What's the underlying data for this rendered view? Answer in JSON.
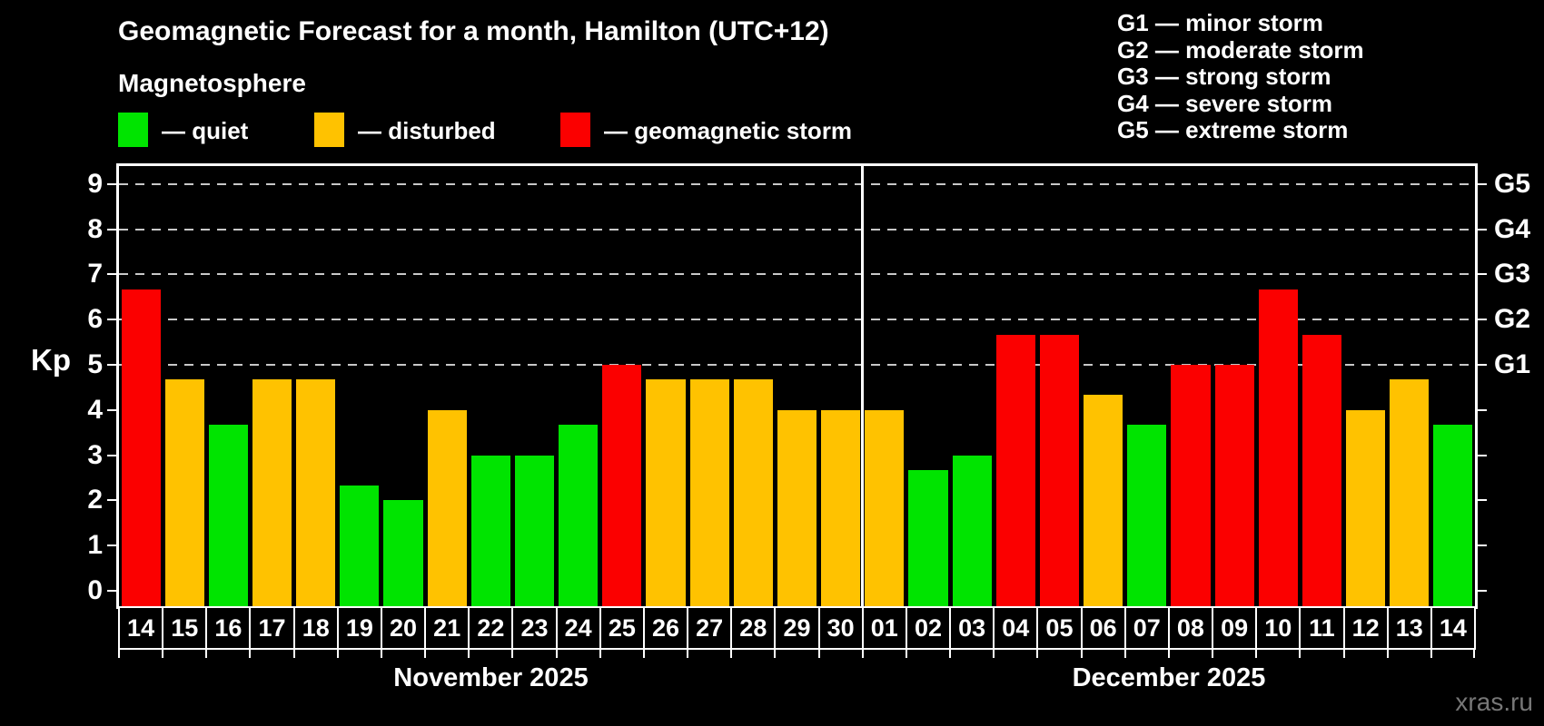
{
  "title": "Geomagnetic Forecast for a month, Hamilton (UTC+12)",
  "subtitle": "Magnetosphere",
  "legend": {
    "quiet": "— quiet",
    "disturbed": "— disturbed",
    "storm": "— geomagnetic storm"
  },
  "g_scale_legend": [
    "G1 — minor storm",
    "G2 — moderate storm",
    "G3 — strong storm",
    "G4 — severe storm",
    "G5 — extreme storm"
  ],
  "watermark": "xras.ru",
  "colors": {
    "quiet": "#00e400",
    "disturbed": "#ffc200",
    "storm": "#fb0000",
    "grid": "#c8c8c8",
    "axis": "#ffffff",
    "watermark": "#777777"
  },
  "chart_data": {
    "type": "bar",
    "ylabel": "Kp",
    "ylim": [
      -0.35,
      9.4
    ],
    "yticks": [
      0,
      1,
      2,
      3,
      4,
      5,
      6,
      7,
      8,
      9
    ],
    "grid_levels": [
      5,
      6,
      7,
      8,
      9
    ],
    "right_axis_labels": [
      {
        "kp": 5,
        "label": "G1"
      },
      {
        "kp": 6,
        "label": "G2"
      },
      {
        "kp": 7,
        "label": "G3"
      },
      {
        "kp": 8,
        "label": "G4"
      },
      {
        "kp": 9,
        "label": "G5"
      }
    ],
    "months": [
      {
        "label": "November 2025",
        "days": [
          {
            "day": "14",
            "kp": 6.67,
            "status": "storm"
          },
          {
            "day": "15",
            "kp": 4.67,
            "status": "disturbed"
          },
          {
            "day": "16",
            "kp": 3.67,
            "status": "quiet"
          },
          {
            "day": "17",
            "kp": 4.67,
            "status": "disturbed"
          },
          {
            "day": "18",
            "kp": 4.67,
            "status": "disturbed"
          },
          {
            "day": "19",
            "kp": 2.33,
            "status": "quiet"
          },
          {
            "day": "20",
            "kp": 2.0,
            "status": "quiet"
          },
          {
            "day": "21",
            "kp": 4.0,
            "status": "disturbed"
          },
          {
            "day": "22",
            "kp": 3.0,
            "status": "quiet"
          },
          {
            "day": "23",
            "kp": 3.0,
            "status": "quiet"
          },
          {
            "day": "24",
            "kp": 3.67,
            "status": "quiet"
          },
          {
            "day": "25",
            "kp": 5.0,
            "status": "storm"
          },
          {
            "day": "26",
            "kp": 4.67,
            "status": "disturbed"
          },
          {
            "day": "27",
            "kp": 4.67,
            "status": "disturbed"
          },
          {
            "day": "28",
            "kp": 4.67,
            "status": "disturbed"
          },
          {
            "day": "29",
            "kp": 4.0,
            "status": "disturbed"
          },
          {
            "day": "30",
            "kp": 4.0,
            "status": "disturbed"
          }
        ]
      },
      {
        "label": "December 2025",
        "days": [
          {
            "day": "01",
            "kp": 4.0,
            "status": "disturbed"
          },
          {
            "day": "02",
            "kp": 2.67,
            "status": "quiet"
          },
          {
            "day": "03",
            "kp": 3.0,
            "status": "quiet"
          },
          {
            "day": "04",
            "kp": 5.67,
            "status": "storm"
          },
          {
            "day": "05",
            "kp": 5.67,
            "status": "storm"
          },
          {
            "day": "06",
            "kp": 4.33,
            "status": "disturbed"
          },
          {
            "day": "07",
            "kp": 3.67,
            "status": "quiet"
          },
          {
            "day": "08",
            "kp": 5.0,
            "status": "storm"
          },
          {
            "day": "09",
            "kp": 5.0,
            "status": "storm"
          },
          {
            "day": "10",
            "kp": 6.67,
            "status": "storm"
          },
          {
            "day": "11",
            "kp": 5.67,
            "status": "storm"
          },
          {
            "day": "12",
            "kp": 4.0,
            "status": "disturbed"
          },
          {
            "day": "13",
            "kp": 4.67,
            "status": "disturbed"
          },
          {
            "day": "14",
            "kp": 3.67,
            "status": "quiet"
          }
        ]
      }
    ]
  }
}
